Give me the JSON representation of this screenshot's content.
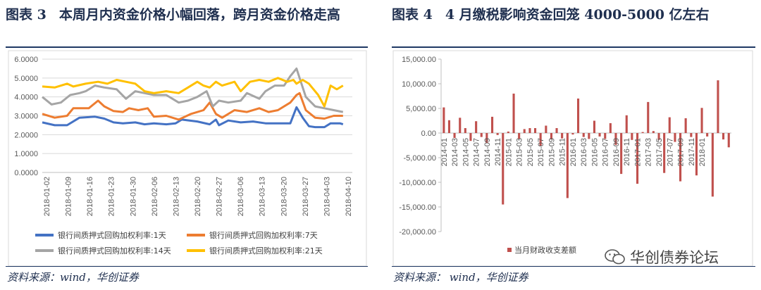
{
  "left": {
    "label": "图表 3",
    "title": "本周月内资金价格小幅回落，跨月资金价格走高",
    "source": "资料来源：wind，华创证券"
  },
  "right": {
    "label": "图表 4",
    "title": "4 月缴税影响资金回笼 4000-5000 亿左右",
    "source": "资料来源： wind，华创证券",
    "watermark": "华创债券论坛"
  },
  "chart_data": [
    {
      "type": "line",
      "title": "",
      "xlabel": "",
      "ylabel": "",
      "ylim": [
        0,
        6
      ],
      "y_ticks": [
        "0.0000",
        "1.0000",
        "2.0000",
        "3.0000",
        "4.0000",
        "5.0000",
        "6.0000"
      ],
      "x_ticks": [
        "2018-01-02",
        "2018-01-09",
        "2018-01-16",
        "2018-01-23",
        "2018-01-30",
        "2018-02-06",
        "2018-02-13",
        "2018-02-20",
        "2018-02-27",
        "2018-03-06",
        "2018-03-13",
        "2018-03-20",
        "2018-03-27",
        "2018-04-03",
        "2018-04-10"
      ],
      "x_range": [
        0,
        100
      ],
      "grid": true,
      "legend_position": "bottom",
      "series": [
        {
          "name": "银行间质押式回购加权利率:1天",
          "color": "#4472c4",
          "points": [
            [
              0,
              2.65
            ],
            [
              4,
              2.5
            ],
            [
              8,
              2.5
            ],
            [
              12,
              2.9
            ],
            [
              17,
              2.95
            ],
            [
              20,
              2.85
            ],
            [
              23,
              2.65
            ],
            [
              26,
              2.6
            ],
            [
              30,
              2.65
            ],
            [
              33,
              2.55
            ],
            [
              36,
              2.6
            ],
            [
              40,
              2.55
            ],
            [
              43,
              2.6
            ],
            [
              45,
              2.8
            ],
            [
              50,
              2.7
            ],
            [
              54,
              2.55
            ],
            [
              56,
              2.8
            ],
            [
              57,
              2.5
            ],
            [
              60,
              2.75
            ],
            [
              64,
              2.65
            ],
            [
              68,
              2.7
            ],
            [
              72,
              2.6
            ],
            [
              76,
              2.6
            ],
            [
              80,
              2.6
            ],
            [
              82,
              3.45
            ],
            [
              84,
              2.9
            ],
            [
              86,
              2.45
            ],
            [
              88,
              2.4
            ],
            [
              91,
              2.4
            ],
            [
              93,
              2.6
            ],
            [
              96,
              2.6
            ],
            [
              97,
              2.55
            ]
          ]
        },
        {
          "name": "银行间质押式回购加权利率:7天",
          "color": "#ed7d31",
          "points": [
            [
              0,
              3.1
            ],
            [
              4,
              2.9
            ],
            [
              8,
              3.0
            ],
            [
              10,
              3.4
            ],
            [
              15,
              3.4
            ],
            [
              18,
              3.8
            ],
            [
              20,
              3.5
            ],
            [
              23,
              3.25
            ],
            [
              26,
              3.2
            ],
            [
              28,
              3.4
            ],
            [
              31,
              3.3
            ],
            [
              34,
              3.4
            ],
            [
              36,
              2.95
            ],
            [
              40,
              3.0
            ],
            [
              44,
              2.8
            ],
            [
              48,
              3.1
            ],
            [
              52,
              3.3
            ],
            [
              54,
              3.7
            ],
            [
              56,
              3.1
            ],
            [
              58,
              2.9
            ],
            [
              62,
              3.3
            ],
            [
              66,
              3.2
            ],
            [
              70,
              3.4
            ],
            [
              73,
              3.2
            ],
            [
              76,
              3.3
            ],
            [
              80,
              3.7
            ],
            [
              82,
              4.1
            ],
            [
              83,
              4.2
            ],
            [
              85,
              3.3
            ],
            [
              88,
              2.9
            ],
            [
              91,
              2.85
            ],
            [
              94,
              3.0
            ],
            [
              97,
              3.0
            ]
          ]
        },
        {
          "name": "银行间质押式回购加权利率:14天",
          "color": "#a5a5a5",
          "points": [
            [
              0,
              4.0
            ],
            [
              3,
              3.6
            ],
            [
              6,
              3.7
            ],
            [
              9,
              4.1
            ],
            [
              12,
              4.2
            ],
            [
              14,
              4.3
            ],
            [
              17,
              4.6
            ],
            [
              20,
              4.5
            ],
            [
              24,
              4.4
            ],
            [
              27,
              3.9
            ],
            [
              30,
              4.3
            ],
            [
              33,
              4.2
            ],
            [
              36,
              4.1
            ],
            [
              40,
              4.1
            ],
            [
              44,
              3.7
            ],
            [
              47,
              3.8
            ],
            [
              50,
              4.0
            ],
            [
              53,
              4.3
            ],
            [
              55,
              3.5
            ],
            [
              57,
              3.8
            ],
            [
              60,
              3.7
            ],
            [
              64,
              3.8
            ],
            [
              66,
              4.2
            ],
            [
              70,
              3.9
            ],
            [
              72,
              4.3
            ],
            [
              75,
              4.6
            ],
            [
              78,
              4.6
            ],
            [
              80,
              5.1
            ],
            [
              82,
              5.5
            ],
            [
              83,
              5.0
            ],
            [
              85,
              4.0
            ],
            [
              88,
              3.5
            ],
            [
              91,
              3.4
            ],
            [
              94,
              3.3
            ],
            [
              97,
              3.2
            ]
          ]
        },
        {
          "name": "银行间质押式回购加权利率:21天",
          "color": "#ffc000",
          "points": [
            [
              0,
              4.55
            ],
            [
              4,
              4.5
            ],
            [
              8,
              4.7
            ],
            [
              10,
              4.55
            ],
            [
              14,
              4.7
            ],
            [
              18,
              4.8
            ],
            [
              21,
              4.7
            ],
            [
              24,
              4.9
            ],
            [
              27,
              4.8
            ],
            [
              30,
              4.7
            ],
            [
              33,
              4.3
            ],
            [
              36,
              4.2
            ],
            [
              40,
              4.3
            ],
            [
              44,
              4.2
            ],
            [
              47,
              4.5
            ],
            [
              50,
              4.8
            ],
            [
              52,
              4.6
            ],
            [
              54,
              4.5
            ],
            [
              56,
              4.8
            ],
            [
              58,
              4.6
            ],
            [
              62,
              4.8
            ],
            [
              64,
              4.3
            ],
            [
              67,
              4.8
            ],
            [
              70,
              4.9
            ],
            [
              73,
              4.8
            ],
            [
              76,
              5.0
            ],
            [
              79,
              4.8
            ],
            [
              81,
              4.9
            ],
            [
              82,
              4.7
            ],
            [
              84,
              4.9
            ],
            [
              86,
              4.7
            ],
            [
              89,
              4.1
            ],
            [
              91,
              3.5
            ],
            [
              93,
              4.6
            ],
            [
              95,
              4.4
            ],
            [
              97,
              4.6
            ]
          ]
        }
      ]
    },
    {
      "type": "bar",
      "title": "",
      "xlabel": "",
      "ylabel": "",
      "ylim": [
        -20000,
        15000
      ],
      "y_ticks": [
        "-20,000.00",
        "-15,000.00",
        "-10,000.00",
        "-5,000.00",
        "0.00",
        "5,000.00",
        "10,000.00",
        "15,000.00"
      ],
      "x_ticks": [
        "2014-01",
        "2014-03",
        "2014-05",
        "2014-07",
        "2014-09",
        "2014-11",
        "2015-01",
        "2015-03",
        "2015-05",
        "2015-07",
        "2015-09",
        "2015-11",
        "2016-01",
        "2016-03",
        "2016-05",
        "2016-07",
        "2016-09",
        "2016-11",
        "2017-01",
        "2017-03",
        "2017-05",
        "2017-07",
        "2017-09",
        "2017-11",
        "2018-01"
      ],
      "grid": false,
      "legend_position": "bottom-right",
      "series": [
        {
          "name": "当月财政收支差额",
          "color": "#c0504d",
          "values": [
            5200,
            2600,
            -1000,
            3100,
            1000,
            -1600,
            2400,
            -800,
            -2000,
            3300,
            -400,
            -14500,
            300,
            8000,
            -1200,
            800,
            1000,
            1000,
            -2600,
            1500,
            -1300,
            1000,
            -1100,
            -13200,
            -300,
            7000,
            -800,
            -1200,
            2500,
            -700,
            -1200,
            2000,
            -2400,
            -8300,
            3600,
            -1400,
            -10300,
            200,
            6300,
            400,
            -1400,
            -8100,
            3200,
            -1800,
            -9800,
            3000,
            -800,
            -8600,
            5100,
            -700,
            -12900,
            10700,
            -1300,
            -2900
          ]
        }
      ]
    }
  ]
}
